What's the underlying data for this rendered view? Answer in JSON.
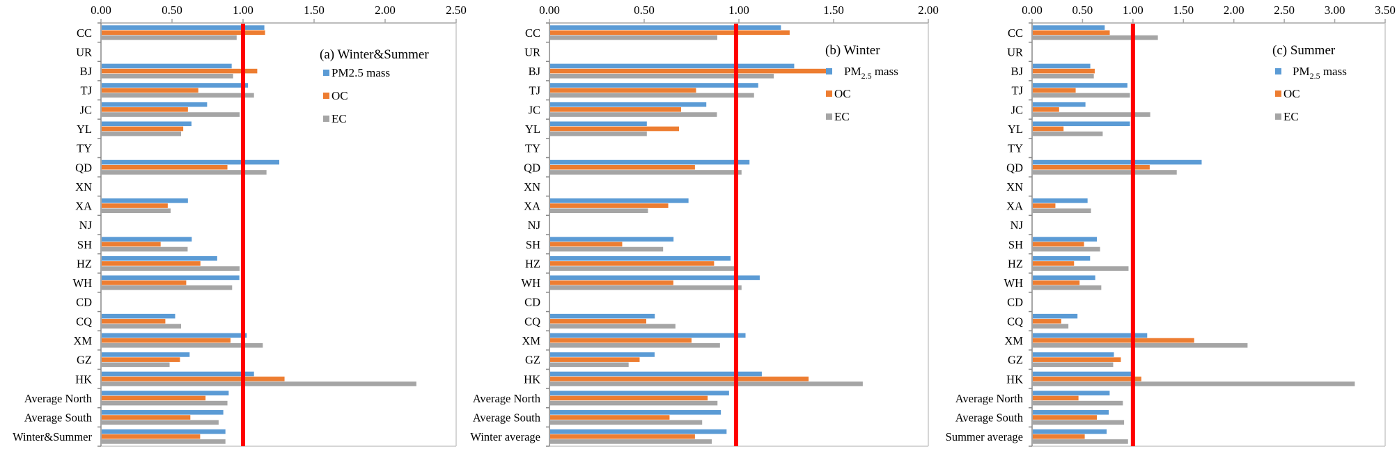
{
  "colors": {
    "pm": "#5b9bd5",
    "oc": "#ed7d31",
    "ec": "#a5a5a5",
    "reference_line": "#ff0000",
    "axis": "#a6a6a6"
  },
  "chart_data": [
    {
      "type": "bar",
      "orientation": "horizontal",
      "title": "(a) Winter&Summer",
      "legend_position": "top-right",
      "xlim": [
        0,
        2.5
      ],
      "xticks": [
        "0.00",
        "0.50",
        "1.00",
        "1.50",
        "2.00",
        "2.50"
      ],
      "reference_line": 1.0,
      "categories": [
        "CC",
        "UR",
        "BJ",
        "TJ",
        "JC",
        "YL",
        "TY",
        "QD",
        "XN",
        "XA",
        "NJ",
        "SH",
        "HZ",
        "WH",
        "CD",
        "CQ",
        "XM",
        "GZ",
        "HK",
        "Average North",
        "Average South",
        "Winter&Summer"
      ],
      "series": [
        {
          "name": "PM2.5 mass",
          "subscript": false,
          "values": [
            1.15,
            null,
            0.92,
            1.035,
            0.747,
            0.637,
            null,
            1.255,
            null,
            0.612,
            null,
            0.639,
            0.818,
            0.974,
            null,
            0.522,
            1.026,
            0.624,
            1.077,
            0.899,
            0.861,
            0.876
          ]
        },
        {
          "name": "OC",
          "values": [
            1.155,
            null,
            1.1,
            0.685,
            0.612,
            0.579,
            null,
            0.89,
            null,
            0.47,
            null,
            0.42,
            0.7,
            0.6,
            null,
            0.453,
            0.912,
            0.556,
            1.292,
            0.736,
            0.629,
            0.698
          ]
        },
        {
          "name": "EC",
          "values": [
            0.955,
            null,
            0.93,
            1.077,
            0.976,
            0.564,
            null,
            1.165,
            null,
            0.49,
            null,
            0.61,
            0.976,
            0.923,
            null,
            0.564,
            1.139,
            0.483,
            2.22,
            0.89,
            0.828,
            0.876
          ]
        }
      ]
    },
    {
      "type": "bar",
      "orientation": "horizontal",
      "title": "(b) Winter",
      "legend_position": "top-right",
      "xlim": [
        0,
        2.0
      ],
      "xticks": [
        "0.00",
        "0.50",
        "1.00",
        "1.50",
        "2.00"
      ],
      "reference_line": 0.985,
      "categories": [
        "CC",
        "UR",
        "BJ",
        "TJ",
        "JC",
        "YL",
        "TY",
        "QD",
        "XN",
        "XA",
        "NJ",
        "SH",
        "HZ",
        "WH",
        "CD",
        "CQ",
        "XM",
        "GZ",
        "HK",
        "Average North",
        "Average South",
        "Winter average"
      ],
      "series": [
        {
          "name": "PM2.5 mass",
          "subscript": true,
          "values": [
            1.222,
            null,
            1.292,
            1.102,
            0.828,
            0.514,
            null,
            1.056,
            null,
            0.734,
            null,
            0.655,
            0.956,
            1.11,
            null,
            0.556,
            1.035,
            0.555,
            1.121,
            0.948,
            0.905,
            0.935
          ]
        },
        {
          "name": "OC",
          "values": [
            1.268,
            null,
            1.463,
            0.774,
            0.695,
            0.684,
            null,
            0.768,
            null,
            0.627,
            null,
            0.384,
            0.869,
            0.654,
            null,
            0.511,
            0.75,
            0.476,
            1.368,
            0.835,
            0.634,
            0.768
          ]
        },
        {
          "name": "EC",
          "values": [
            0.886,
            null,
            1.184,
            1.08,
            0.884,
            0.514,
            null,
            1.014,
            null,
            0.52,
            null,
            0.6,
            0.98,
            1.014,
            null,
            0.665,
            0.9,
            0.418,
            1.654,
            0.887,
            0.806,
            0.857
          ]
        }
      ]
    },
    {
      "type": "bar",
      "orientation": "horizontal",
      "title": "(c) Summer",
      "legend_position": "top-right",
      "xlim": [
        0,
        3.5
      ],
      "xticks": [
        "0.00",
        "0.50",
        "1.00",
        "1.50",
        "2.00",
        "2.50",
        "3.00",
        "3.50"
      ],
      "reference_line": 1.0,
      "categories": [
        "CC",
        "UR",
        "BJ",
        "TJ",
        "JC",
        "YL",
        "TY",
        "QD",
        "XN",
        "XA",
        "NJ",
        "SH",
        "HZ",
        "WH",
        "CD",
        "CQ",
        "XM",
        "GZ",
        "HK",
        "Average North",
        "Average South",
        "Summer average"
      ],
      "series": [
        {
          "name": "PM2.5 mass",
          "subscript": true,
          "values": [
            0.72,
            null,
            0.577,
            0.945,
            0.529,
            0.97,
            null,
            1.681,
            null,
            0.55,
            null,
            0.642,
            0.575,
            0.626,
            null,
            0.45,
            1.141,
            0.811,
            0.99,
            0.769,
            0.76,
            0.739
          ]
        },
        {
          "name": "OC",
          "values": [
            0.77,
            null,
            0.621,
            0.432,
            0.268,
            0.312,
            null,
            1.166,
            null,
            0.231,
            null,
            0.515,
            0.416,
            0.471,
            null,
            0.289,
            1.607,
            0.88,
            1.083,
            0.46,
            0.642,
            0.522
          ]
        },
        {
          "name": "EC",
          "values": [
            1.247,
            null,
            0.612,
            0.97,
            1.171,
            0.7,
            null,
            1.434,
            null,
            0.584,
            null,
            0.674,
            0.956,
            0.686,
            null,
            0.36,
            2.136,
            0.804,
            3.199,
            0.9,
            0.912,
            0.951
          ]
        }
      ]
    }
  ]
}
